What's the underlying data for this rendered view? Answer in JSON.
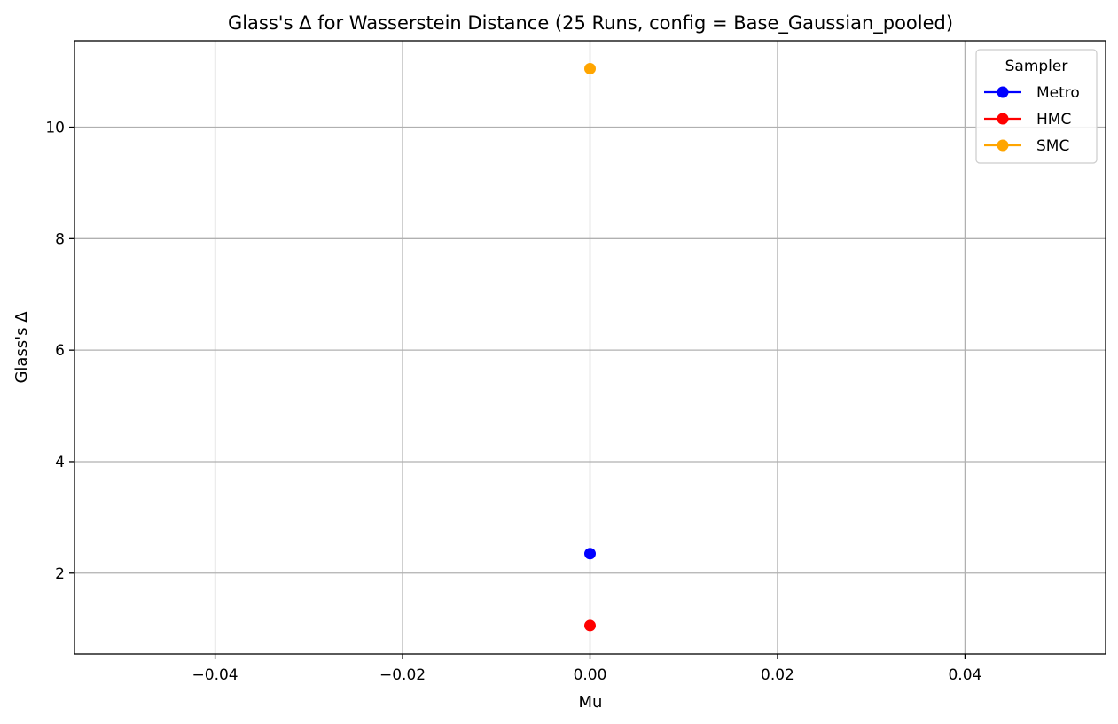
{
  "chart_data": {
    "type": "scatter",
    "title": "Glass's Δ for Wasserstein Distance (25 Runs, config = Base_Gaussian_pooled)",
    "xlabel": "Mu",
    "ylabel": "Glass's Δ",
    "xlim": [
      -0.055,
      0.055
    ],
    "ylim": [
      0.55,
      11.55
    ],
    "xticks": [
      -0.04,
      -0.02,
      0.0,
      0.02,
      0.04
    ],
    "xtick_labels": [
      "−0.04",
      "−0.02",
      "0.00",
      "0.02",
      "0.04"
    ],
    "yticks": [
      2,
      4,
      6,
      8,
      10
    ],
    "ytick_labels": [
      "2",
      "4",
      "6",
      "8",
      "10"
    ],
    "grid": true,
    "legend": {
      "title": "Sampler",
      "position": "top-right"
    },
    "series": [
      {
        "name": "Metro",
        "color": "#0000ff",
        "x": [
          0.0
        ],
        "y": [
          2.35
        ]
      },
      {
        "name": "HMC",
        "color": "#ff0000",
        "x": [
          0.0
        ],
        "y": [
          1.06
        ]
      },
      {
        "name": "SMC",
        "color": "#ffa500",
        "x": [
          0.0
        ],
        "y": [
          11.05
        ]
      }
    ]
  }
}
